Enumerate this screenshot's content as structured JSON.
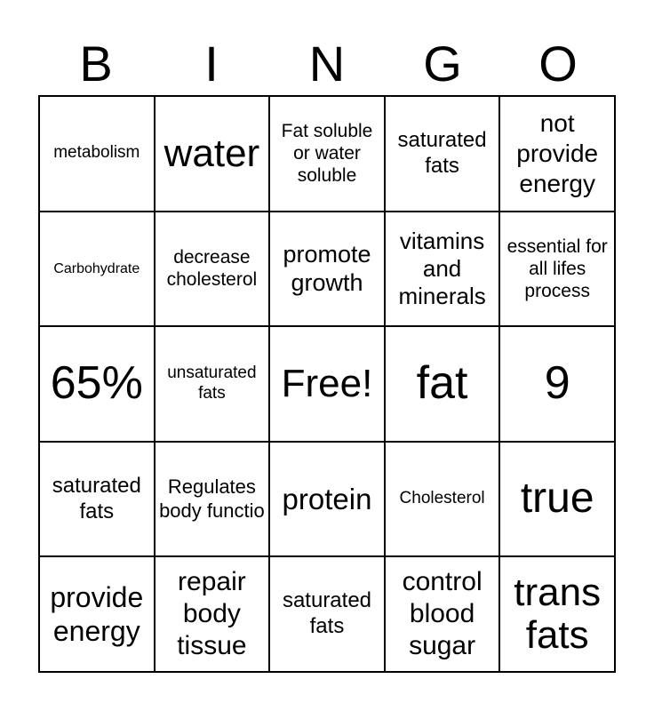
{
  "header": [
    "B",
    "I",
    "N",
    "G",
    "O"
  ],
  "cells": [
    {
      "text": "metabolism",
      "size": 19
    },
    {
      "text": "water",
      "size": 44
    },
    {
      "text": "Fat soluble or water soluble",
      "size": 21
    },
    {
      "text": "saturated fats",
      "size": 24
    },
    {
      "text": "not provide energy",
      "size": 28
    },
    {
      "text": "Carbohydrate",
      "size": 16
    },
    {
      "text": "decrease cholesterol",
      "size": 21
    },
    {
      "text": "promote growth",
      "size": 27
    },
    {
      "text": "vitamins and minerals",
      "size": 26
    },
    {
      "text": "essential for all lifes process",
      "size": 21
    },
    {
      "text": "65%",
      "size": 52
    },
    {
      "text": "unsaturated fats",
      "size": 19
    },
    {
      "text": "Free!",
      "size": 44
    },
    {
      "text": "fat",
      "size": 52
    },
    {
      "text": "9",
      "size": 52
    },
    {
      "text": "saturated fats",
      "size": 24
    },
    {
      "text": "Regulates body functio",
      "size": 22
    },
    {
      "text": "protein",
      "size": 33
    },
    {
      "text": "Cholesterol",
      "size": 19
    },
    {
      "text": "true",
      "size": 48
    },
    {
      "text": "provide energy",
      "size": 32
    },
    {
      "text": "repair body tissue",
      "size": 30
    },
    {
      "text": "saturated fats",
      "size": 24
    },
    {
      "text": "control blood sugar",
      "size": 30
    },
    {
      "text": "trans fats",
      "size": 44
    }
  ]
}
